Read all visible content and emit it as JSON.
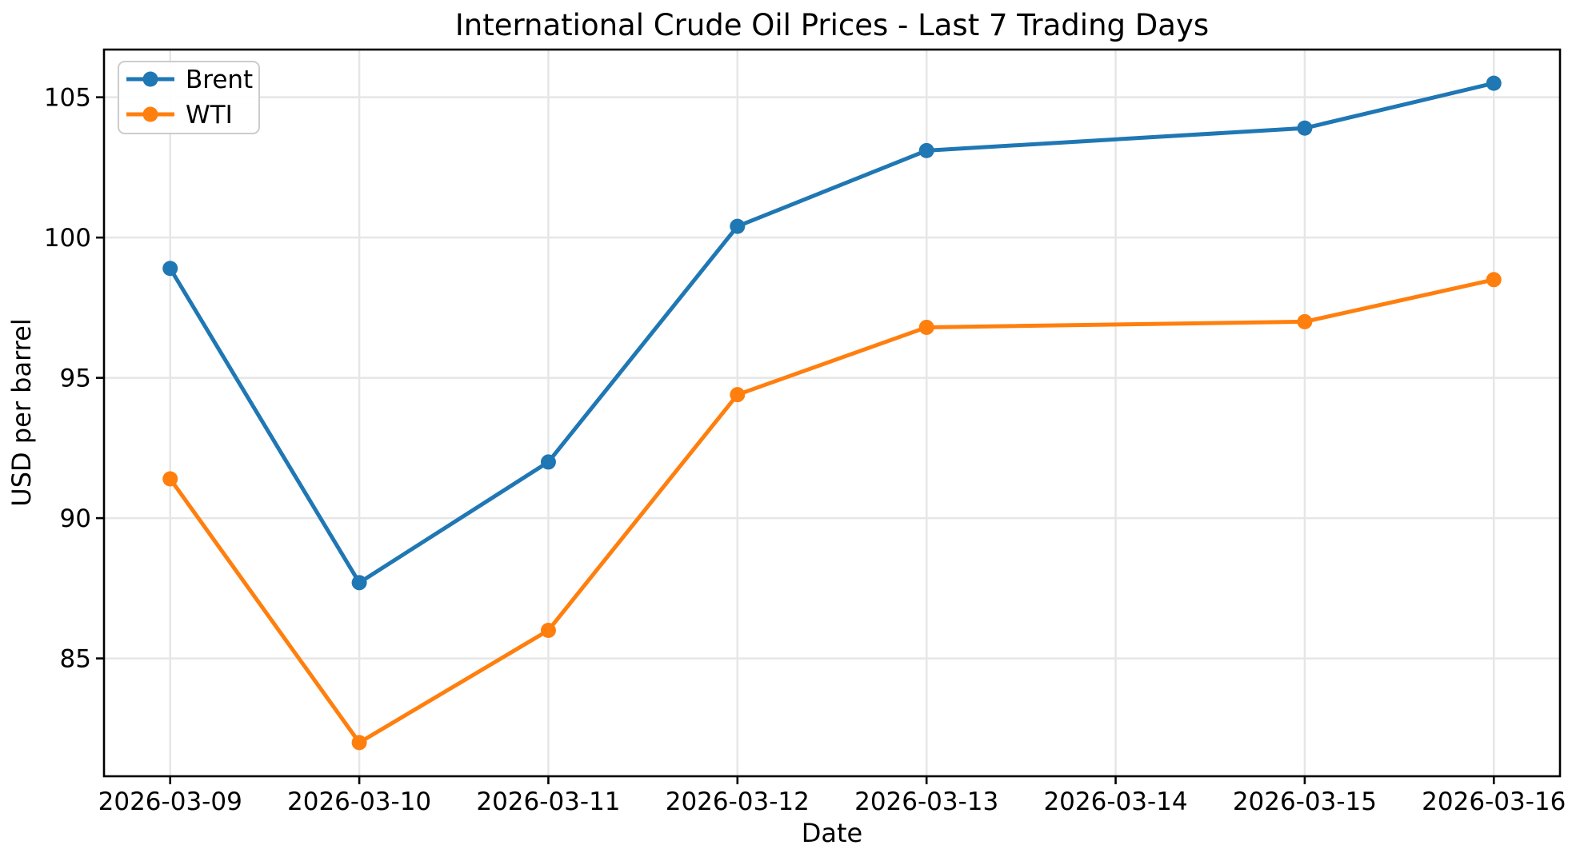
{
  "chart_data": {
    "type": "line",
    "title": "International Crude Oil Prices - Last 7 Trading Days",
    "xlabel": "Date",
    "ylabel": "USD per barrel",
    "x_dates": [
      "2026-03-09",
      "2026-03-10",
      "2026-03-11",
      "2026-03-12",
      "2026-03-13",
      "2026-03-15",
      "2026-03-16"
    ],
    "x_day_offsets": [
      0,
      1,
      2,
      3,
      4,
      6,
      7
    ],
    "series": [
      {
        "name": "Brent",
        "color": "#1f77b4",
        "marker": "circle",
        "values": [
          98.9,
          87.7,
          92.0,
          100.4,
          103.1,
          103.9,
          105.5
        ]
      },
      {
        "name": "WTI",
        "color": "#ff7f0e",
        "marker": "circle",
        "values": [
          91.4,
          82.0,
          86.0,
          94.4,
          96.8,
          97.0,
          98.5
        ]
      }
    ],
    "xticks": {
      "day_offsets": [
        0,
        1,
        2,
        3,
        4,
        5,
        6,
        7
      ],
      "labels": [
        "2026-03-09",
        "2026-03-10",
        "2026-03-11",
        "2026-03-12",
        "2026-03-13",
        "2026-03-14",
        "2026-03-15",
        "2026-03-16"
      ]
    },
    "yticks": [
      85,
      90,
      95,
      100,
      105
    ],
    "xlim": [
      -0.35,
      7.35
    ],
    "ylim": [
      80.8,
      106.7
    ],
    "grid": true,
    "legend_position": "upper-left",
    "styles": {
      "grid_color": "#e6e6e6",
      "spine_color": "#000000",
      "background": "#ffffff",
      "legend_border": "#cccccc",
      "line_width": 5,
      "marker_radius": 9.5,
      "spine_width": 2.6,
      "tick_length": 10
    }
  }
}
